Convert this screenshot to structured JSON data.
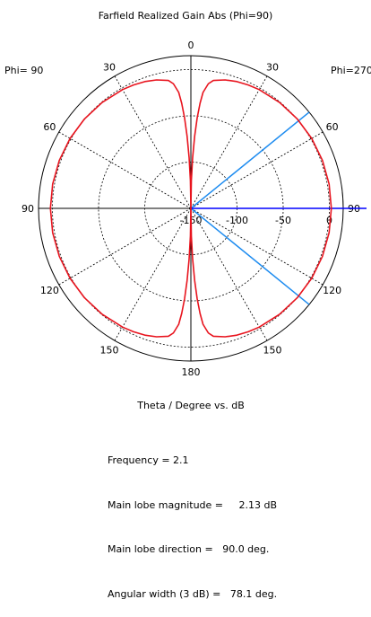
{
  "chart_data": {
    "type": "polar",
    "title": "Farfield Realized Gain Abs (Phi=90)",
    "xlabel": "Theta / Degree vs. dB",
    "left_label": "Phi= 90",
    "right_label": "Phi=270",
    "angle_ticks": [
      {
        "label": "0",
        "deg": 0,
        "side": "left"
      },
      {
        "label": "30",
        "deg": 30,
        "side": "left"
      },
      {
        "label": "60",
        "deg": 60,
        "side": "left"
      },
      {
        "label": "90",
        "deg": 90,
        "side": "left"
      },
      {
        "label": "120",
        "deg": 120,
        "side": "left"
      },
      {
        "label": "150",
        "deg": 150,
        "side": "left"
      },
      {
        "label": "180",
        "deg": 180,
        "side": "left"
      },
      {
        "label": "30",
        "deg": 30,
        "side": "right"
      },
      {
        "label": "60",
        "deg": 60,
        "side": "right"
      },
      {
        "label": "90",
        "deg": 90,
        "side": "right"
      },
      {
        "label": "120",
        "deg": 120,
        "side": "right"
      },
      {
        "label": "150",
        "deg": 150,
        "side": "right"
      }
    ],
    "radial_range_db": [
      -150,
      15
    ],
    "radial_ticks": [
      {
        "label": "-150",
        "db": -150
      },
      {
        "label": "-100",
        "db": -100
      },
      {
        "label": "-50",
        "db": -50
      },
      {
        "label": "0",
        "db": 0
      }
    ],
    "series": [
      {
        "color": "#e8141e",
        "theta_deg": [
          0,
          1,
          2,
          3,
          4,
          5,
          6,
          8,
          10,
          15,
          20,
          25,
          30,
          40,
          50,
          60,
          70,
          80,
          90,
          100,
          110,
          120,
          130,
          140,
          150,
          155,
          160,
          165,
          170,
          172,
          174,
          175,
          176,
          177,
          178,
          179,
          180
        ],
        "gain_db": [
          -150,
          -120,
          -95,
          -72,
          -52,
          -36,
          -24,
          -14,
          -9.6,
          -6.3,
          -4.2,
          -2.9,
          -1.85,
          -0.55,
          0.4,
          1.1,
          1.65,
          2.0,
          2.13,
          2.0,
          1.65,
          1.1,
          0.4,
          -0.55,
          -1.85,
          -2.9,
          -4.2,
          -6.3,
          -9.6,
          -14,
          -24,
          -36,
          -52,
          -72,
          -95,
          -120,
          -150
        ]
      }
    ],
    "main_lobe_direction_deg": 90,
    "beamwidth_3db_deg": [
      50.95,
      129.05
    ],
    "main_lobe_color": "#0000ff",
    "beamwidth_color": "#1e8cf0"
  },
  "info": {
    "frequency": "Frequency = 2.1",
    "magnitude": "Main lobe magnitude =     2.13 dB",
    "direction": "Main lobe direction =   90.0 deg.",
    "width": "Angular width (3 dB) =   78.1 deg."
  }
}
